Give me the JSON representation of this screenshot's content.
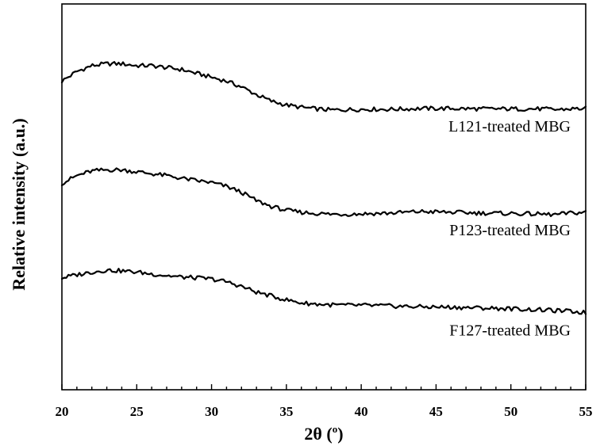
{
  "chart_data": {
    "type": "line",
    "xlabel_main": "2θ (",
    "xlabel_sup": "o",
    "xlabel_end": ")",
    "ylabel": "Relative intensity (a.u.)",
    "xlim": [
      20,
      55
    ],
    "ylim": [
      0,
      1
    ],
    "x_ticks": [
      20,
      25,
      30,
      35,
      40,
      45,
      50,
      55
    ],
    "x_tick_labels": [
      "20",
      "25",
      "30",
      "35",
      "40",
      "45",
      "50",
      "55"
    ],
    "y_ticks_shown": false,
    "series": [
      {
        "name": "L121-treated MBG",
        "x": [
          20,
          21,
          22,
          23,
          24,
          25,
          26,
          27,
          28,
          29,
          30,
          31,
          32,
          33,
          34,
          35,
          36,
          37,
          38,
          39,
          40,
          42,
          44,
          46,
          48,
          50,
          52,
          53,
          54,
          55
        ],
        "y": [
          0.8,
          0.825,
          0.84,
          0.845,
          0.845,
          0.84,
          0.84,
          0.835,
          0.83,
          0.82,
          0.81,
          0.8,
          0.785,
          0.765,
          0.748,
          0.738,
          0.732,
          0.728,
          0.725,
          0.726,
          0.727,
          0.727,
          0.729,
          0.729,
          0.728,
          0.728,
          0.728,
          0.726,
          0.728,
          0.729
        ]
      },
      {
        "name": "P123-treated MBG",
        "x": [
          20,
          21,
          22,
          23,
          24,
          25,
          26,
          27,
          28,
          29,
          30,
          31,
          32,
          33,
          34,
          35,
          36,
          37,
          38,
          39,
          40,
          42,
          44,
          46,
          48,
          50,
          52,
          53,
          54,
          55
        ],
        "y": [
          0.535,
          0.555,
          0.567,
          0.57,
          0.57,
          0.565,
          0.56,
          0.555,
          0.548,
          0.542,
          0.537,
          0.527,
          0.512,
          0.49,
          0.475,
          0.465,
          0.46,
          0.457,
          0.455,
          0.455,
          0.456,
          0.458,
          0.462,
          0.46,
          0.458,
          0.457,
          0.455,
          0.454,
          0.458,
          0.46
        ]
      },
      {
        "name": "F127-treated MBG",
        "x": [
          20,
          21,
          22,
          23,
          24,
          25,
          26,
          27,
          28,
          29,
          30,
          31,
          32,
          33,
          34,
          35,
          36,
          37,
          38,
          39,
          40,
          42,
          44,
          46,
          48,
          50,
          52,
          53,
          54,
          55
        ],
        "y": [
          0.29,
          0.298,
          0.305,
          0.31,
          0.308,
          0.305,
          0.3,
          0.296,
          0.292,
          0.29,
          0.287,
          0.28,
          0.268,
          0.253,
          0.243,
          0.233,
          0.225,
          0.222,
          0.22,
          0.219,
          0.219,
          0.217,
          0.215,
          0.214,
          0.212,
          0.21,
          0.207,
          0.205,
          0.203,
          0.2
        ]
      }
    ]
  }
}
